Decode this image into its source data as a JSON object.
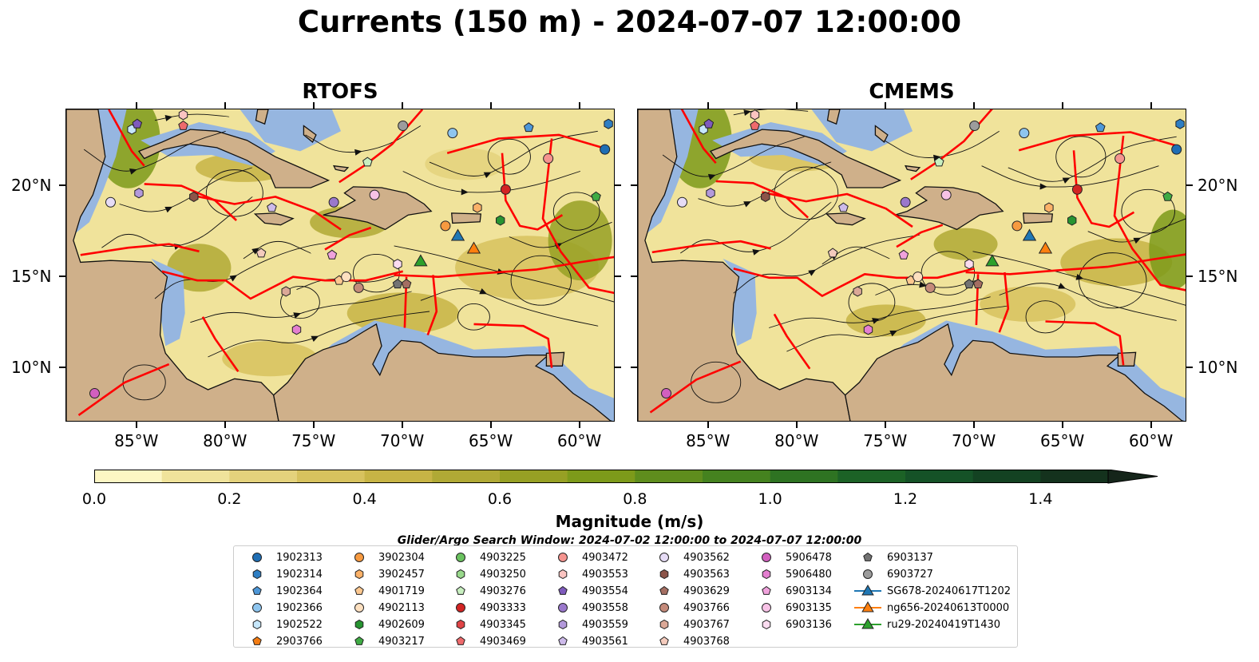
{
  "figure": {
    "title": "Currents (150 m) - 2024-07-07 12:00:00",
    "panels": [
      {
        "title": "RTOFS"
      },
      {
        "title": "CMEMS"
      }
    ],
    "lon_ticks": [
      "85°W",
      "80°W",
      "75°W",
      "70°W",
      "65°W",
      "60°W"
    ],
    "lat_ticks": [
      "20°N",
      "15°N",
      "10°N"
    ],
    "lon_range": [
      -89,
      -58
    ],
    "lat_range": [
      7,
      24.2
    ]
  },
  "colorbar": {
    "label": "Magnitude (m/s)",
    "ticks": [
      "0.0",
      "0.2",
      "0.4",
      "0.6",
      "0.8",
      "1.0",
      "1.2",
      "1.4"
    ],
    "range": [
      0,
      1.5
    ],
    "extend": "max",
    "colors": [
      "#fdf6c4",
      "#f0e39b",
      "#e4d27c",
      "#d7c25e",
      "#c7b445",
      "#b0a935",
      "#97a024",
      "#7d9a1a",
      "#5f8d1d",
      "#45821f",
      "#2e7322",
      "#1c6226",
      "#155227",
      "#134222",
      "#14321d",
      "#15251a"
    ]
  },
  "search_window": "Glider/Argo Search Window: 2024-07-02 12:00:00 to 2024-07-07 12:00:00",
  "colors": {
    "land": "#cfb08a",
    "shelf": "#96b6e0",
    "eez": "#ff0000"
  },
  "legend": {
    "columns": [
      [
        {
          "label": "1902313",
          "marker": "circle",
          "color": "#1f6eb4"
        },
        {
          "label": "1902314",
          "marker": "hexagon",
          "color": "#2e7ec3"
        },
        {
          "label": "1902364",
          "marker": "pentagon",
          "color": "#4d97d8"
        },
        {
          "label": "1902366",
          "marker": "circle",
          "color": "#8ec5ef"
        },
        {
          "label": "1902522",
          "marker": "hexagon",
          "color": "#c6e7fb"
        },
        {
          "label": "2903766",
          "marker": "pentagon",
          "color": "#f47c12"
        }
      ],
      [
        {
          "label": "3902304",
          "marker": "circle",
          "color": "#f79a40"
        },
        {
          "label": "3902457",
          "marker": "hexagon",
          "color": "#fbb168"
        },
        {
          "label": "4901719",
          "marker": "pentagon",
          "color": "#fdc890"
        },
        {
          "label": "4902113",
          "marker": "circle",
          "color": "#fde0c0"
        },
        {
          "label": "4902609",
          "marker": "hexagon",
          "color": "#279431"
        },
        {
          "label": "4903217",
          "marker": "pentagon",
          "color": "#3fab44"
        }
      ],
      [
        {
          "label": "4903225",
          "marker": "circle",
          "color": "#6ac25f"
        },
        {
          "label": "4903250",
          "marker": "hexagon",
          "color": "#98d88b"
        },
        {
          "label": "4903276",
          "marker": "pentagon",
          "color": "#c8efc0"
        },
        {
          "label": "4903333",
          "marker": "circle",
          "color": "#d22423"
        },
        {
          "label": "4903345",
          "marker": "hexagon",
          "color": "#e04446"
        },
        {
          "label": "4903469",
          "marker": "pentagon",
          "color": "#ee6a6c"
        }
      ],
      [
        {
          "label": "4903472",
          "marker": "circle",
          "color": "#f5948f"
        },
        {
          "label": "4903553",
          "marker": "hexagon",
          "color": "#fbc4c1"
        },
        {
          "label": "4903554",
          "marker": "pentagon",
          "color": "#7f5bbd"
        },
        {
          "label": "4903558",
          "marker": "circle",
          "color": "#9a78cc"
        },
        {
          "label": "4903559",
          "marker": "hexagon",
          "color": "#b399db"
        },
        {
          "label": "4903561",
          "marker": "pentagon",
          "color": "#cdbaea"
        }
      ],
      [
        {
          "label": "4903562",
          "marker": "circle",
          "color": "#e6dcf6"
        },
        {
          "label": "4903563",
          "marker": "hexagon",
          "color": "#8c5449"
        },
        {
          "label": "4903629",
          "marker": "pentagon",
          "color": "#a46e62"
        },
        {
          "label": "4903766",
          "marker": "circle",
          "color": "#c48a7a"
        },
        {
          "label": "4903767",
          "marker": "hexagon",
          "color": "#dba897"
        },
        {
          "label": "4903768",
          "marker": "pentagon",
          "color": "#f4cbbd"
        }
      ],
      [
        {
          "label": "5906478",
          "marker": "circle",
          "color": "#d25fbf"
        },
        {
          "label": "5906480",
          "marker": "hexagon",
          "color": "#e47fd0"
        },
        {
          "label": "6903134",
          "marker": "pentagon",
          "color": "#f0a2dc"
        },
        {
          "label": "6903135",
          "marker": "circle",
          "color": "#f7c2e6"
        },
        {
          "label": "6903136",
          "marker": "hexagon",
          "color": "#fbdcf0"
        }
      ],
      [
        {
          "label": "6903137",
          "marker": "pentagon",
          "color": "#737373"
        },
        {
          "label": "6903727",
          "marker": "circle",
          "color": "#9c9c9c"
        },
        {
          "label": "SG678-20240617T1202",
          "marker": "triangle-line",
          "color": "#1f77b4"
        },
        {
          "label": "ng656-20240613T0000",
          "marker": "triangle-line",
          "color": "#ff7f0e"
        },
        {
          "label": "ru29-20240419T1430",
          "marker": "triangle-line",
          "color": "#2ca02c"
        }
      ]
    ]
  }
}
